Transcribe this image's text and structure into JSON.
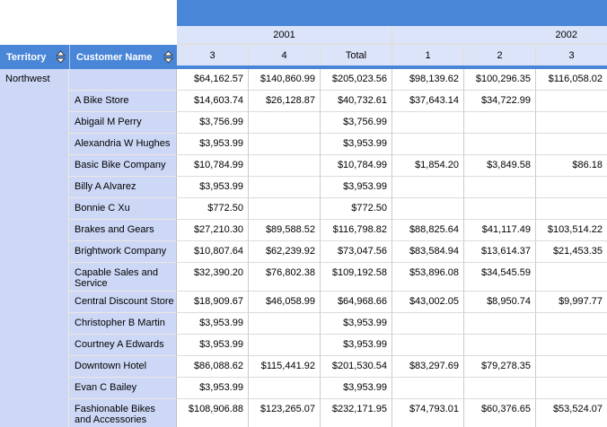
{
  "header": {
    "territory_label": "Territory",
    "customer_label": "Customer Name",
    "year_groups": [
      {
        "label": "2001"
      },
      {
        "label": "2002"
      }
    ],
    "quarter_labels": [
      "3",
      "4",
      "Total",
      "1",
      "2",
      "3"
    ]
  },
  "territory": "Northwest",
  "rows": [
    {
      "name": "",
      "values": [
        "$64,162.57",
        "$140,860.99",
        "$205,023.56",
        "$98,139.62",
        "$100,296.35",
        "$116,058.02"
      ]
    },
    {
      "name": "A Bike Store",
      "values": [
        "$14,603.74",
        "$26,128.87",
        "$40,732.61",
        "$37,643.14",
        "$34,722.99",
        ""
      ]
    },
    {
      "name": "Abigail M Perry",
      "values": [
        "$3,756.99",
        "",
        "$3,756.99",
        "",
        "",
        ""
      ]
    },
    {
      "name": "Alexandria W Hughes",
      "values": [
        "$3,953.99",
        "",
        "$3,953.99",
        "",
        "",
        ""
      ]
    },
    {
      "name": "Basic Bike Company",
      "values": [
        "$10,784.99",
        "",
        "$10,784.99",
        "$1,854.20",
        "$3,849.58",
        "$86.18"
      ]
    },
    {
      "name": "Billy A Alvarez",
      "values": [
        "$3,953.99",
        "",
        "$3,953.99",
        "",
        "",
        ""
      ]
    },
    {
      "name": "Bonnie C Xu",
      "values": [
        "$772.50",
        "",
        "$772.50",
        "",
        "",
        ""
      ]
    },
    {
      "name": "Brakes and Gears",
      "values": [
        "$27,210.30",
        "$89,588.52",
        "$116,798.82",
        "$88,825.64",
        "$41,117.49",
        "$103,514.22"
      ]
    },
    {
      "name": "Brightwork Company",
      "values": [
        "$10,807.64",
        "$62,239.92",
        "$73,047.56",
        "$83,584.94",
        "$13,614.37",
        "$21,453.35"
      ]
    },
    {
      "name": "Capable Sales and Service",
      "values": [
        "$32,390.20",
        "$76,802.38",
        "$109,192.58",
        "$53,896.08",
        "$34,545.59",
        ""
      ]
    },
    {
      "name": "Central Discount Store",
      "values": [
        "$18,909.67",
        "$46,058.99",
        "$64,968.66",
        "$43,002.05",
        "$8,950.74",
        "$9,997.77"
      ]
    },
    {
      "name": "Christopher B Martin",
      "values": [
        "$3,953.99",
        "",
        "$3,953.99",
        "",
        "",
        ""
      ]
    },
    {
      "name": "Courtney A Edwards",
      "values": [
        "$3,953.99",
        "",
        "$3,953.99",
        "",
        "",
        ""
      ]
    },
    {
      "name": "Downtown Hotel",
      "values": [
        "$86,088.62",
        "$115,441.92",
        "$201,530.54",
        "$83,297.69",
        "$79,278.35",
        ""
      ]
    },
    {
      "name": "Evan C Bailey",
      "values": [
        "$3,953.99",
        "",
        "$3,953.99",
        "",
        "",
        ""
      ]
    },
    {
      "name": "Fashionable Bikes and Accessories",
      "values": [
        "$108,906.88",
        "$123,265.07",
        "$232,171.95",
        "$74,793.01",
        "$60,376.65",
        "$53,524.07"
      ]
    }
  ],
  "colors": {
    "header_blue": "#4a86d8",
    "light_header_blue": "#dbe4f9",
    "row_label_periwinkle": "#ccd8f6",
    "header_grid_tan": "#e6ddcf",
    "data_grid_gray": "#cccccc"
  }
}
